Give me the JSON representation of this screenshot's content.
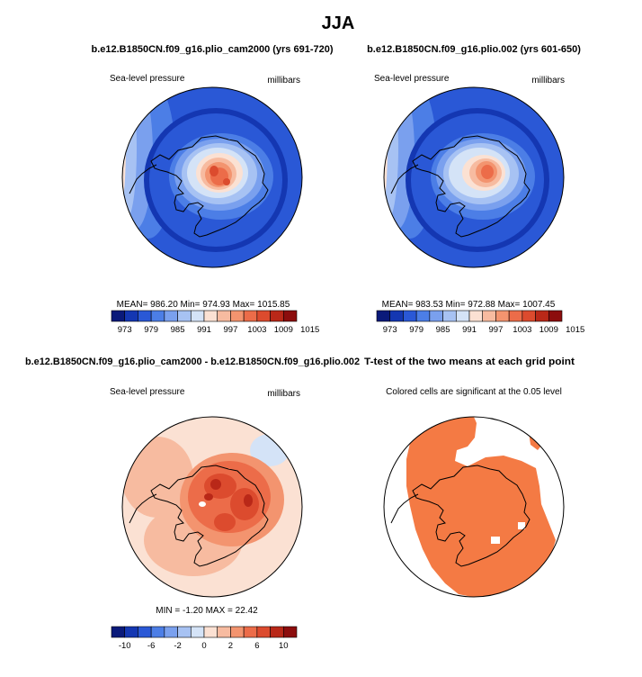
{
  "page": {
    "title": "JJA"
  },
  "colors": {
    "outline": "#000000",
    "coast": "#000000",
    "sig": "#f47a44",
    "sea_field": "#2a58d6",
    "ice_field": "#f9cbb4"
  },
  "palettes": {
    "slp": [
      "#0a1a7a",
      "#1437b2",
      "#2a58d6",
      "#4c7ee6",
      "#7aa0ee",
      "#a7c2f3",
      "#d4e3f7",
      "#fbe1d3",
      "#f7bba0",
      "#f3946f",
      "#ec6c49",
      "#dc4b2e",
      "#b92818",
      "#8c0d0d"
    ],
    "diff": [
      "#0a1a7a",
      "#1437b2",
      "#2a58d6",
      "#4c7ee6",
      "#7aa0ee",
      "#a7c2f3",
      "#d4e3f7",
      "#fbe1d3",
      "#f7bba0",
      "#f3946f",
      "#ec6c49",
      "#dc4b2e",
      "#b92818",
      "#8c0d0d"
    ]
  },
  "panels": {
    "case1": {
      "title": "b.e12.B1850CN.f09_g16.plio_cam2000 (yrs 691-720)",
      "left_label": "Sea-level pressure",
      "right_label": "millibars",
      "stats": "MEAN= 986.20   Min= 974.93   Max= 1015.85",
      "cbar_ticks": [
        "973",
        "979",
        "985",
        "991",
        "997",
        "1003",
        "1009",
        "1015"
      ]
    },
    "case2": {
      "title": "b.e12.B1850CN.f09_g16.plio.002 (yrs 601-650)",
      "left_label": "Sea-level pressure",
      "right_label": "millibars",
      "stats": "MEAN= 983.53   Min= 972.88   Max= 1007.45",
      "cbar_ticks": [
        "973",
        "979",
        "985",
        "991",
        "997",
        "1003",
        "1009",
        "1015"
      ]
    },
    "diff": {
      "title": "b.e12.B1850CN.f09_g16.plio_cam2000 - b.e12.B1850CN.f09_g16.plio.002",
      "left_label": "Sea-level pressure",
      "right_label": "millibars",
      "stats": "MIN =   -1.20  MAX =   22.42",
      "cbar_ticks": [
        "-10",
        "-6",
        "-2",
        "0",
        "2",
        "6",
        "10"
      ]
    },
    "ttest": {
      "title": "T-test of the two means at each grid point",
      "label": "Colored cells are significant at the 0.05 level"
    }
  },
  "chart_data": [
    {
      "type": "map",
      "name": "case1",
      "projection": "south polar stereographic",
      "field": "Sea-level pressure",
      "units": "millibars",
      "mean": 986.2,
      "min": 974.93,
      "max": 1015.85,
      "contour_levels": [
        973,
        976,
        979,
        982,
        985,
        988,
        991,
        994,
        997,
        1000,
        1003,
        1006,
        1009,
        1012,
        1015
      ]
    },
    {
      "type": "map",
      "name": "case2",
      "projection": "south polar stereographic",
      "field": "Sea-level pressure",
      "units": "millibars",
      "mean": 983.53,
      "min": 972.88,
      "max": 1007.45,
      "contour_levels": [
        973,
        976,
        979,
        982,
        985,
        988,
        991,
        994,
        997,
        1000,
        1003,
        1006,
        1009,
        1012,
        1015
      ]
    },
    {
      "type": "map",
      "name": "difference",
      "projection": "south polar stereographic",
      "field": "Sea-level pressure difference",
      "units": "millibars",
      "min": -1.2,
      "max": 22.42,
      "contour_levels": [
        -12,
        -10,
        -8,
        -6,
        -4,
        -2,
        0,
        2,
        4,
        6,
        8,
        10,
        12
      ]
    },
    {
      "type": "map",
      "name": "ttest",
      "projection": "south polar stereographic",
      "significance_level": 0.05
    }
  ]
}
